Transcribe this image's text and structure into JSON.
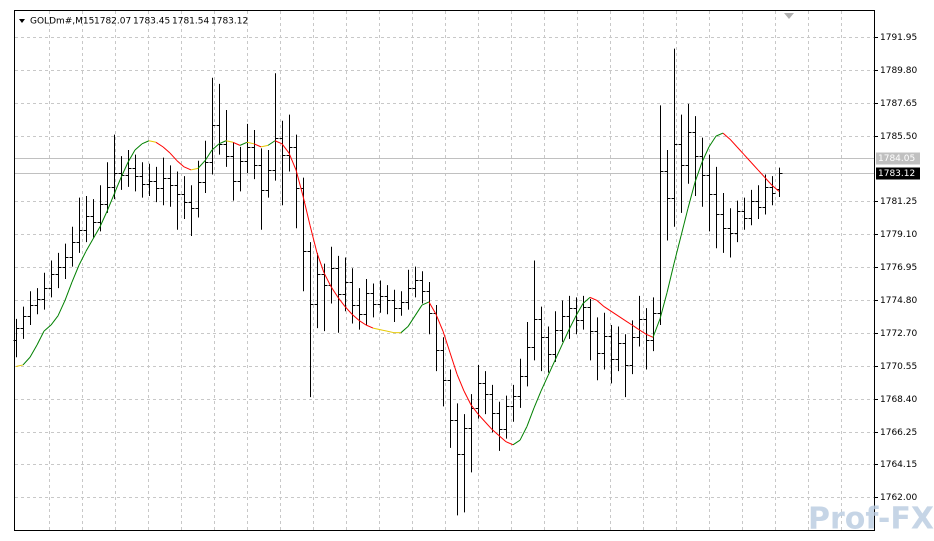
{
  "chart_data": {
    "type": "ohlc",
    "title": "GOLDm#,M15",
    "ylim": [
      1759.85,
      1793.65
    ],
    "yticks": [
      1791.95,
      {
        "value": 1789.8,
        "label": "1789.80"
      },
      1787.65,
      {
        "value": 1785.5,
        "label": "1785.50"
      },
      1781.25,
      {
        "value": 1779.1,
        "label": "1779.10"
      },
      1776.95,
      {
        "value": 1774.8,
        "label": "1774.80"
      },
      {
        "value": 1772.7,
        "label": "1772.70"
      },
      1770.55,
      {
        "value": 1768.4,
        "label": "1768.40"
      },
      1766.25,
      1764.15,
      {
        "value": 1762,
        "label": "1762.00"
      }
    ],
    "grid": true,
    "bar_color": "#000000",
    "ask": 1784.05,
    "ohlc": [
      [
        1772.2,
        1773.6,
        1771.1,
        1773.0
      ],
      [
        1773.0,
        1774.4,
        1772.3,
        1773.8
      ],
      [
        1773.8,
        1775.4,
        1773.2,
        1774.5
      ],
      [
        1774.5,
        1775.6,
        1773.9,
        1774.9
      ],
      [
        1774.9,
        1776.6,
        1774.2,
        1775.6
      ],
      [
        1775.6,
        1777.4,
        1775.0,
        1776.5
      ],
      [
        1776.5,
        1777.9,
        1775.6,
        1777.0
      ],
      [
        1777.0,
        1778.5,
        1776.2,
        1777.6
      ],
      [
        1777.6,
        1779.6,
        1777.0,
        1778.6
      ],
      [
        1778.6,
        1781.5,
        1777.9,
        1779.4
      ],
      [
        1779.4,
        1781.6,
        1778.6,
        1780.3
      ],
      [
        1780.3,
        1781.4,
        1778.9,
        1779.9
      ],
      [
        1779.9,
        1782.3,
        1779.3,
        1781.1
      ],
      [
        1781.1,
        1783.8,
        1780.5,
        1782.2
      ],
      [
        1782.2,
        1785.6,
        1781.4,
        1783.1
      ],
      [
        1783.1,
        1784.2,
        1782.0,
        1783.0
      ],
      [
        1783.0,
        1784.6,
        1782.2,
        1783.4
      ],
      [
        1783.4,
        1784.3,
        1781.9,
        1782.9
      ],
      [
        1782.9,
        1783.8,
        1781.5,
        1782.4
      ],
      [
        1782.4,
        1783.7,
        1781.6,
        1782.6
      ],
      [
        1782.6,
        1783.5,
        1781.2,
        1782.1
      ],
      [
        1782.1,
        1784.1,
        1781.0,
        1782.8
      ],
      [
        1782.8,
        1783.6,
        1780.9,
        1782.3
      ],
      [
        1782.3,
        1783.2,
        1779.4,
        1781.7
      ],
      [
        1781.7,
        1782.9,
        1780.1,
        1781.2
      ],
      [
        1781.2,
        1782.3,
        1779.0,
        1780.8
      ],
      [
        1780.8,
        1783.9,
        1780.2,
        1782.5
      ],
      [
        1782.5,
        1785.2,
        1781.8,
        1783.8
      ],
      [
        1783.8,
        1789.3,
        1783.0,
        1786.2
      ],
      [
        1786.2,
        1788.9,
        1784.3,
        1785.0
      ],
      [
        1785.0,
        1787.2,
        1783.5,
        1784.2
      ],
      [
        1784.2,
        1785.1,
        1781.3,
        1782.6
      ],
      [
        1782.6,
        1784.8,
        1781.9,
        1783.9
      ],
      [
        1783.9,
        1786.3,
        1783.1,
        1784.8
      ],
      [
        1784.8,
        1785.9,
        1782.7,
        1783.6
      ],
      [
        1783.6,
        1784.7,
        1779.4,
        1782.0
      ],
      [
        1782.0,
        1784.6,
        1781.5,
        1783.3
      ],
      [
        1783.3,
        1789.6,
        1782.6,
        1785.4
      ],
      [
        1785.4,
        1786.5,
        1781.0,
        1784.3
      ],
      [
        1784.3,
        1786.9,
        1783.2,
        1784.8
      ],
      [
        1784.8,
        1785.6,
        1779.5,
        1782.1
      ],
      [
        1782.1,
        1782.8,
        1775.4,
        1778.0
      ],
      [
        1778.0,
        1778.6,
        1768.5,
        1774.6
      ],
      [
        1774.6,
        1777.9,
        1773.0,
        1776.5
      ],
      [
        1776.5,
        1777.2,
        1772.8,
        1775.8
      ],
      [
        1775.8,
        1778.3,
        1774.6,
        1776.9
      ],
      [
        1776.9,
        1777.7,
        1772.7,
        1775.2
      ],
      [
        1775.2,
        1777.6,
        1774.1,
        1776.0
      ],
      [
        1776.0,
        1776.9,
        1773.3,
        1774.5
      ],
      [
        1774.5,
        1775.6,
        1772.9,
        1773.9
      ],
      [
        1773.9,
        1776.2,
        1773.2,
        1775.3
      ],
      [
        1775.3,
        1775.9,
        1773.7,
        1774.6
      ],
      [
        1774.6,
        1776.1,
        1774.0,
        1775.1
      ],
      [
        1775.1,
        1775.8,
        1773.9,
        1774.8
      ],
      [
        1774.8,
        1775.5,
        1773.4,
        1774.3
      ],
      [
        1774.3,
        1775.4,
        1773.8,
        1774.7
      ],
      [
        1774.7,
        1776.8,
        1774.2,
        1775.6
      ],
      [
        1775.6,
        1777.0,
        1775.0,
        1776.1
      ],
      [
        1776.1,
        1776.7,
        1774.6,
        1775.4
      ],
      [
        1775.4,
        1776.0,
        1772.6,
        1774.0
      ],
      [
        1774.0,
        1774.5,
        1770.2,
        1771.6
      ],
      [
        1771.6,
        1772.4,
        1767.9,
        1769.6
      ],
      [
        1769.6,
        1770.3,
        1765.2,
        1767.0
      ],
      [
        1767.0,
        1768.1,
        1760.8,
        1764.8
      ],
      [
        1764.8,
        1767.4,
        1761.0,
        1766.5
      ],
      [
        1766.5,
        1768.7,
        1763.6,
        1767.8
      ],
      [
        1767.8,
        1770.6,
        1767.1,
        1769.4
      ],
      [
        1769.4,
        1770.2,
        1767.4,
        1768.7
      ],
      [
        1768.7,
        1769.3,
        1766.2,
        1767.5
      ],
      [
        1767.5,
        1768.2,
        1765.0,
        1766.4
      ],
      [
        1766.4,
        1768.6,
        1765.8,
        1767.9
      ],
      [
        1767.9,
        1769.3,
        1766.9,
        1768.6
      ],
      [
        1768.6,
        1771.0,
        1767.8,
        1769.9
      ],
      [
        1769.9,
        1773.4,
        1769.2,
        1771.8
      ],
      [
        1771.8,
        1777.4,
        1770.9,
        1773.6
      ],
      [
        1773.6,
        1774.4,
        1770.2,
        1772.4
      ],
      [
        1772.4,
        1773.1,
        1770.1,
        1771.3
      ],
      [
        1771.3,
        1774.1,
        1770.8,
        1772.9
      ],
      [
        1772.9,
        1774.8,
        1772.1,
        1773.8
      ],
      [
        1773.8,
        1775.1,
        1772.3,
        1774.3
      ],
      [
        1774.3,
        1775.0,
        1772.6,
        1773.5
      ],
      [
        1773.5,
        1775.1,
        1772.9,
        1774.4
      ],
      [
        1774.4,
        1774.9,
        1770.9,
        1772.8
      ],
      [
        1772.8,
        1773.7,
        1769.6,
        1771.4
      ],
      [
        1771.4,
        1774.0,
        1770.3,
        1772.5
      ],
      [
        1772.5,
        1773.2,
        1769.4,
        1771.0
      ],
      [
        1771.0,
        1773.1,
        1770.2,
        1772.0
      ],
      [
        1772.0,
        1772.6,
        1768.5,
        1770.6
      ],
      [
        1770.6,
        1773.5,
        1770.0,
        1772.4
      ],
      [
        1772.4,
        1775.1,
        1771.8,
        1773.6
      ],
      [
        1773.6,
        1774.3,
        1770.3,
        1772.2
      ],
      [
        1772.2,
        1775.0,
        1771.5,
        1774.0
      ],
      [
        1774.0,
        1787.5,
        1773.2,
        1783.2
      ],
      [
        1783.2,
        1784.6,
        1778.7,
        1781.5
      ],
      [
        1781.5,
        1791.2,
        1779.6,
        1785.0
      ],
      [
        1785.0,
        1786.9,
        1780.5,
        1783.6
      ],
      [
        1783.6,
        1787.6,
        1782.4,
        1785.8
      ],
      [
        1785.8,
        1786.8,
        1781.6,
        1784.2
      ],
      [
        1784.2,
        1785.4,
        1780.9,
        1783.0
      ],
      [
        1783.0,
        1784.3,
        1779.3,
        1781.7
      ],
      [
        1781.7,
        1783.5,
        1778.2,
        1780.4
      ],
      [
        1780.4,
        1781.8,
        1777.9,
        1779.5
      ],
      [
        1779.5,
        1780.8,
        1777.6,
        1779.2
      ],
      [
        1779.2,
        1781.3,
        1778.6,
        1780.6
      ],
      [
        1780.6,
        1781.5,
        1779.4,
        1780.2
      ],
      [
        1780.2,
        1782.0,
        1779.7,
        1781.3
      ],
      [
        1781.3,
        1782.3,
        1780.1,
        1780.9
      ],
      [
        1780.9,
        1783.0,
        1780.4,
        1782.2
      ],
      [
        1782.2,
        1782.9,
        1781.0,
        1781.8
      ],
      [
        1782.07,
        1783.45,
        1781.54,
        1783.12
      ]
    ],
    "indicator": {
      "up_color": "#008000",
      "down_color": "#ff0000",
      "flat_color": "#e6c800",
      "values": [
        1770.5,
        1770.6,
        1771.1,
        1771.9,
        1772.8,
        1773.2,
        1773.8,
        1774.8,
        1776.0,
        1777.1,
        1778.0,
        1778.8,
        1779.6,
        1780.6,
        1781.7,
        1782.8,
        1783.8,
        1784.6,
        1785.0,
        1785.2,
        1785.1,
        1784.8,
        1784.4,
        1783.9,
        1783.5,
        1783.3,
        1783.4,
        1783.9,
        1784.6,
        1785.0,
        1785.2,
        1785.1,
        1784.9,
        1785.1,
        1785.0,
        1784.8,
        1784.9,
        1785.2,
        1785.0,
        1784.4,
        1783.3,
        1781.6,
        1779.7,
        1777.9,
        1776.6,
        1775.7,
        1775.0,
        1774.4,
        1773.9,
        1773.5,
        1773.2,
        1773.0,
        1772.9,
        1772.8,
        1772.7,
        1772.7,
        1773.1,
        1773.8,
        1774.5,
        1774.7,
        1773.9,
        1772.8,
        1771.4,
        1770.0,
        1768.9,
        1768.0,
        1767.4,
        1766.9,
        1766.4,
        1766.0,
        1765.6,
        1765.4,
        1765.7,
        1766.6,
        1767.8,
        1768.9,
        1769.9,
        1770.9,
        1771.9,
        1772.9,
        1773.8,
        1774.6,
        1775.0,
        1774.8,
        1774.4,
        1774.1,
        1773.8,
        1773.5,
        1773.2,
        1772.9,
        1772.6,
        1772.4,
        1773.6,
        1775.3,
        1777.2,
        1779.0,
        1780.8,
        1782.5,
        1783.8,
        1784.8,
        1785.5,
        1785.7,
        1785.3,
        1784.8,
        1784.3,
        1783.8,
        1783.3,
        1782.8,
        1782.3,
        1781.9
      ]
    },
    "watermark": "Prof-FX"
  }
}
